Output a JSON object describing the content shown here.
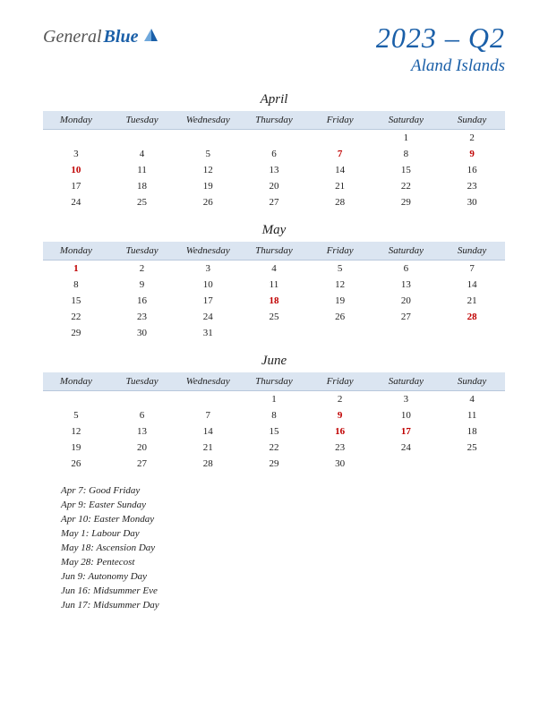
{
  "logo": {
    "text1": "General",
    "text2": "Blue"
  },
  "title": {
    "main": "2023 – Q2",
    "sub": "Aland Islands"
  },
  "colors": {
    "brand_blue": "#1a5fa8",
    "header_bg": "#dbe5f1",
    "header_border": "#b8c8dc",
    "holiday_red": "#c00000",
    "text": "#222222",
    "logo_gray": "#555555",
    "background": "#ffffff"
  },
  "weekdays": [
    "Monday",
    "Tuesday",
    "Wednesday",
    "Thursday",
    "Friday",
    "Saturday",
    "Sunday"
  ],
  "months": [
    {
      "name": "April",
      "weeks": [
        [
          "",
          "",
          "",
          "",
          "",
          "1",
          "2"
        ],
        [
          "3",
          "4",
          "5",
          "6",
          "7",
          "8",
          "9"
        ],
        [
          "10",
          "11",
          "12",
          "13",
          "14",
          "15",
          "16"
        ],
        [
          "17",
          "18",
          "19",
          "20",
          "21",
          "22",
          "23"
        ],
        [
          "24",
          "25",
          "26",
          "27",
          "28",
          "29",
          "30"
        ]
      ],
      "holidays": [
        7,
        9,
        10
      ]
    },
    {
      "name": "May",
      "weeks": [
        [
          "1",
          "2",
          "3",
          "4",
          "5",
          "6",
          "7"
        ],
        [
          "8",
          "9",
          "10",
          "11",
          "12",
          "13",
          "14"
        ],
        [
          "15",
          "16",
          "17",
          "18",
          "19",
          "20",
          "21"
        ],
        [
          "22",
          "23",
          "24",
          "25",
          "26",
          "27",
          "28"
        ],
        [
          "29",
          "30",
          "31",
          "",
          "",
          "",
          ""
        ]
      ],
      "holidays": [
        1,
        18,
        28
      ]
    },
    {
      "name": "June",
      "weeks": [
        [
          "",
          "",
          "",
          "1",
          "2",
          "3",
          "4"
        ],
        [
          "5",
          "6",
          "7",
          "8",
          "9",
          "10",
          "11"
        ],
        [
          "12",
          "13",
          "14",
          "15",
          "16",
          "17",
          "18"
        ],
        [
          "19",
          "20",
          "21",
          "22",
          "23",
          "24",
          "25"
        ],
        [
          "26",
          "27",
          "28",
          "29",
          "30",
          "",
          ""
        ]
      ],
      "holidays": [
        9,
        16,
        17
      ]
    }
  ],
  "holiday_list": [
    "Apr 7: Good Friday",
    "Apr 9: Easter Sunday",
    "Apr 10: Easter Monday",
    "May 1: Labour Day",
    "May 18: Ascension Day",
    "May 28: Pentecost",
    "Jun 9: Autonomy Day",
    "Jun 16: Midsummer Eve",
    "Jun 17: Midsummer Day"
  ]
}
